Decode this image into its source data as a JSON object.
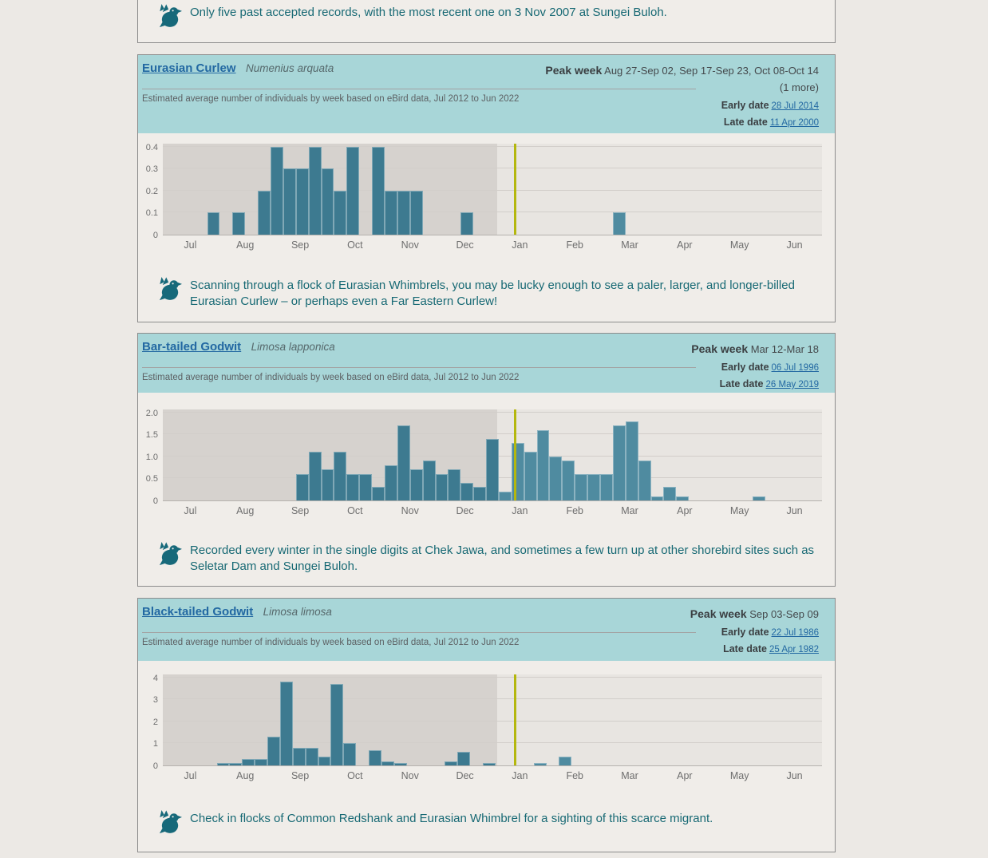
{
  "colors": {
    "page_background": "#ECE9E5",
    "card_background": "#F0EDE9",
    "card_border": "#8C8C8C",
    "header_background": "#A8D6D8",
    "link_blue": "#2268A2",
    "note_teal": "#176974",
    "bird_icon_teal": "#17697A",
    "bar_dark_season": "#3D7A90",
    "bar_light_season": "#4F8BA0",
    "plot_shade_dark": "#D6D2CE",
    "plot_background_light": "#E8E5E1",
    "current_week_marker": "#B4B70E"
  },
  "intro_card": {
    "note": "Only five past accepted records, with the most recent one on 3 Nov 2007 at Sungei Buloh."
  },
  "species_cards": [
    {
      "name": "Eurasian Curlew",
      "scientific_name": "Numenius arquata",
      "subtitle": "Estimated average number of individuals by week based on eBird data, Jul 2012 to Jun 2022",
      "peak_week_label": "Peak week",
      "peak_week": "Aug 27-Sep 02, Sep 17-Sep 23, Oct 08-Oct 14 (1 more)",
      "early_date_label": "Early date",
      "early_date": "28 Jul 2014",
      "late_date_label": "Late date",
      "late_date": "11 Apr 2000",
      "note": "Scanning through a flock of Eurasian Whimbrels, you may be lucky enough to see a paler, larger, and longer-billed Eurasian Curlew – or perhaps even a Far Eastern Curlew!"
    },
    {
      "name": "Bar-tailed Godwit",
      "scientific_name": "Limosa lapponica",
      "subtitle": "Estimated average number of individuals by week based on eBird data, Jul 2012 to Jun 2022",
      "peak_week_label": "Peak week",
      "peak_week": "Mar 12-Mar 18",
      "early_date_label": "Early date",
      "early_date": "06 Jul 1996",
      "late_date_label": "Late date",
      "late_date": "26 May 2019",
      "note": "Recorded every winter in the single digits at Chek Jawa, and sometimes a few turn up at other shorebird sites such as Seletar Dam and Sungei Buloh."
    },
    {
      "name": "Black-tailed Godwit",
      "scientific_name": "Limosa limosa",
      "subtitle": "Estimated average number of individuals by week based on eBird data, Jul 2012 to Jun 2022",
      "peak_week_label": "Peak week",
      "peak_week": "Sep 03-Sep 09",
      "early_date_label": "Early date",
      "early_date": "22 Jul 1986",
      "late_date_label": "Late date",
      "late_date": "25 Apr 1982",
      "note": "Check in flocks of Common Redshank and Eurasian Whimbrel for a sighting of this scarce migrant."
    }
  ],
  "chart_data": [
    {
      "type": "bar",
      "species": "Eurasian Curlew",
      "description": "Estimated average number of individuals by week, Jul 2012 to Jun 2022",
      "x_unit": "week (Jul through Jun, 52 weeks)",
      "weeks": 52,
      "week_offset": 0.5,
      "months": [
        "Jul",
        "Aug",
        "Sep",
        "Oct",
        "Nov",
        "Dec",
        "Jan",
        "Feb",
        "Mar",
        "Apr",
        "May",
        "Jun"
      ],
      "values": [
        0,
        0,
        0,
        0.1,
        0,
        0.1,
        0,
        0.2,
        0.4,
        0.3,
        0.3,
        0.4,
        0.3,
        0.2,
        0.4,
        0,
        0.4,
        0.2,
        0.2,
        0.2,
        0,
        0,
        0,
        0.1,
        0,
        0,
        0,
        0,
        0,
        0,
        0,
        0,
        0,
        0,
        0,
        0.1,
        0,
        0,
        0,
        0,
        0,
        0,
        0,
        0,
        0,
        0,
        0,
        0,
        0,
        0,
        0,
        0
      ],
      "ymax": 0.4,
      "ytick_values": [
        0,
        0.1,
        0.2,
        0.3,
        0.4
      ],
      "ytick_labels": [
        "0",
        "0.1",
        "0.2",
        "0.3",
        "0.4"
      ],
      "season_shade": {
        "from_week": 0,
        "to_week": 26.35
      },
      "current_week_marker": 27.67,
      "grid": true
    },
    {
      "type": "bar",
      "species": "Bar-tailed Godwit",
      "description": "Estimated average number of individuals by week, Jul 2012 to Jun 2022",
      "x_unit": "week (Jul through Jun, 52 weeks)",
      "weeks": 52,
      "week_offset": 0.5,
      "months": [
        "Jul",
        "Aug",
        "Sep",
        "Oct",
        "Nov",
        "Dec",
        "Jan",
        "Feb",
        "Mar",
        "Apr",
        "May",
        "Jun"
      ],
      "values": [
        0,
        0,
        0,
        0,
        0,
        0,
        0,
        0,
        0,
        0,
        0.6,
        1.1,
        0.7,
        1.1,
        0.6,
        0.6,
        0.3,
        0.8,
        1.7,
        0.7,
        0.9,
        0.6,
        0.7,
        0.4,
        0.3,
        1.4,
        0.2,
        1.3,
        1.1,
        1.6,
        1.0,
        0.9,
        0.6,
        0.6,
        0.6,
        1.7,
        1.8,
        0.9,
        0.1,
        0.3,
        0.1,
        0,
        0,
        0,
        0,
        0,
        0.1,
        0,
        0,
        0,
        0,
        0
      ],
      "ymax": 2.0,
      "ytick_values": [
        0,
        0.5,
        1.0,
        1.5,
        2.0
      ],
      "ytick_labels": [
        "0",
        "0.5",
        "1.0",
        "1.5",
        "2.0"
      ],
      "season_shade": {
        "from_week": 0,
        "to_week": 26.35
      },
      "current_week_marker": 27.67,
      "grid": true
    },
    {
      "type": "bar",
      "species": "Black-tailed Godwit",
      "description": "Estimated average number of individuals by week, Jul 2012 to Jun 2022",
      "x_unit": "week (Jul through Jun, 52 weeks)",
      "weeks": 52,
      "week_offset": 0.25,
      "months": [
        "Jul",
        "Aug",
        "Sep",
        "Oct",
        "Nov",
        "Dec",
        "Jan",
        "Feb",
        "Mar",
        "Apr",
        "May",
        "Jun"
      ],
      "values": [
        0,
        0,
        0,
        0,
        0.1,
        0.1,
        0.3,
        0.3,
        1.3,
        3.8,
        0.8,
        0.8,
        0.4,
        3.7,
        1.0,
        0,
        0.7,
        0.2,
        0.1,
        0,
        0,
        0,
        0.2,
        0.6,
        0,
        0.1,
        0,
        0,
        0,
        0.1,
        0,
        0.4,
        0,
        0,
        0,
        0,
        0,
        0,
        0,
        0,
        0,
        0,
        0,
        0,
        0,
        0,
        0,
        0,
        0,
        0,
        0,
        0
      ],
      "ymax": 4,
      "ytick_values": [
        0,
        1,
        2,
        3,
        4
      ],
      "ytick_labels": [
        "0",
        "1",
        "2",
        "3",
        "4"
      ],
      "season_shade": {
        "from_week": 0,
        "to_week": 26.35
      },
      "current_week_marker": 27.67,
      "grid": true
    }
  ]
}
